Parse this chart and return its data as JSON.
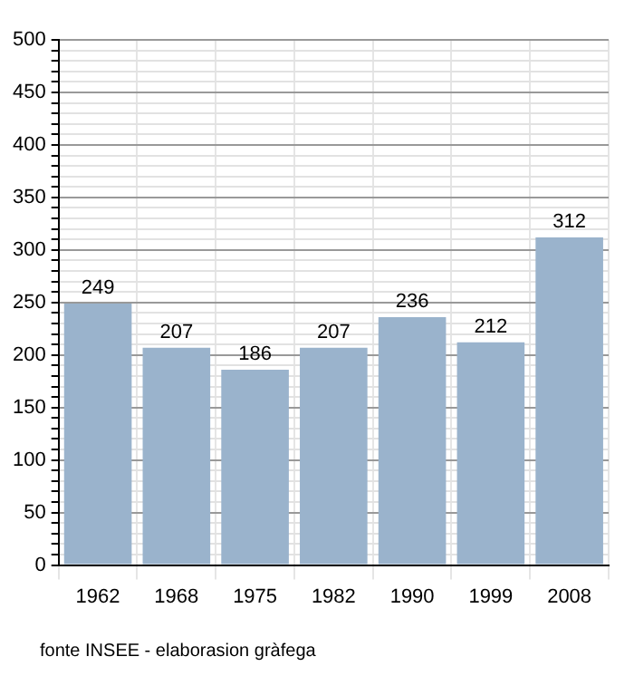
{
  "chart_data": {
    "type": "bar",
    "categories": [
      "1962",
      "1968",
      "1975",
      "1982",
      "1990",
      "1999",
      "2008"
    ],
    "values": [
      249,
      207,
      186,
      207,
      236,
      212,
      312
    ],
    "color": "#9ab3cc",
    "ylim": [
      0,
      500
    ],
    "yticks": [
      0,
      {
        "value": 10,
        "label": null
      },
      {
        "value": 20,
        "label": null
      },
      {
        "value": 30,
        "label": null
      },
      {
        "value": 40,
        "label": null
      },
      50,
      {
        "value": 60,
        "label": null
      },
      {
        "value": 70,
        "label": null
      },
      {
        "value": 80,
        "label": null
      },
      {
        "value": 90,
        "label": null
      },
      100,
      {
        "value": 110,
        "label": null
      },
      {
        "value": 120,
        "label": null
      },
      {
        "value": 130,
        "label": null
      },
      {
        "value": 140,
        "label": null
      },
      150,
      {
        "value": 160,
        "label": null
      },
      {
        "value": 170,
        "label": null
      },
      {
        "value": 180,
        "label": null
      },
      {
        "value": 190,
        "label": null
      },
      200,
      {
        "value": 210,
        "label": null
      },
      {
        "value": 220,
        "label": null
      },
      {
        "value": 230,
        "label": null
      },
      {
        "value": 240,
        "label": null
      },
      250,
      {
        "value": 260,
        "label": null
      },
      {
        "value": 270,
        "label": null
      },
      {
        "value": 280,
        "label": null
      },
      {
        "value": 290,
        "label": null
      },
      300,
      {
        "value": 310,
        "label": null
      },
      {
        "value": 320,
        "label": null
      },
      {
        "value": 330,
        "label": null
      },
      {
        "value": 340,
        "label": null
      },
      350,
      {
        "value": 360,
        "label": null
      },
      {
        "value": 370,
        "label": null
      },
      {
        "value": 380,
        "label": null
      },
      {
        "value": 390,
        "label": null
      },
      400,
      {
        "value": 410,
        "label": null
      },
      {
        "value": 420,
        "label": null
      },
      {
        "value": 430,
        "label": null
      },
      {
        "value": 440,
        "label": null
      },
      450,
      {
        "value": 460,
        "label": null
      },
      {
        "value": 470,
        "label": null
      },
      {
        "value": 480,
        "label": null
      },
      {
        "value": 490,
        "label": null
      },
      500
    ],
    "grid": true,
    "data_labels": true,
    "legend": false,
    "annotations": [
      "fonte INSEE - elaborasion gràfega"
    ]
  }
}
